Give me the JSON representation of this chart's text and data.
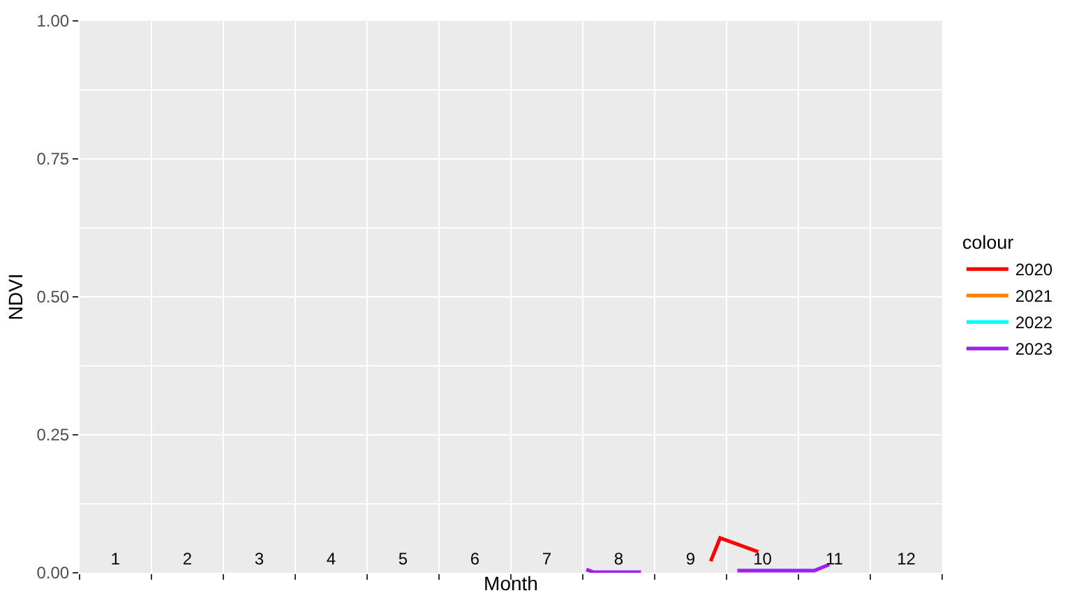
{
  "chart_data": {
    "type": "line",
    "xlabel": "Month",
    "ylabel": "NDVI",
    "legend_title": "colour",
    "legend": "right",
    "grid": true,
    "xlim": [
      0.5,
      12.5
    ],
    "xticks": [
      1,
      2,
      3,
      4,
      5,
      6,
      7,
      8,
      9,
      10,
      11,
      12,
      {
        "value": 0.5,
        "label": null
      },
      {
        "value": 1.5,
        "label": null
      },
      {
        "value": 2.5,
        "label": null
      },
      {
        "value": 3.5,
        "label": null
      },
      {
        "value": 4.5,
        "label": null
      },
      {
        "value": 5.5,
        "label": null
      },
      {
        "value": 6.5,
        "label": null
      },
      {
        "value": 7.5,
        "label": null
      },
      {
        "value": 8.5,
        "label": null
      },
      {
        "value": 9.5,
        "label": null
      },
      {
        "value": 10.5,
        "label": null
      },
      {
        "value": 11.5,
        "label": null
      },
      {
        "value": 12.5,
        "label": null
      }
    ],
    "ylim": [
      0,
      1
    ],
    "yticks": [
      {
        "value": 0,
        "label": "0.00"
      },
      {
        "value": 0.25,
        "label": "0.25"
      },
      {
        "value": 0.5,
        "label": "0.50"
      },
      {
        "value": 0.75,
        "label": "0.75"
      },
      {
        "value": 1,
        "label": "1.00"
      }
    ],
    "series": [
      {
        "name": "2020",
        "color": "#ff0000",
        "x": [
          9.28,
          9.41,
          9.94
        ],
        "values": [
          0.021,
          0.063,
          0.038
        ]
      },
      {
        "name": "2021",
        "color": "#ff7f00"
      },
      {
        "name": "2022",
        "color": "#00ffff"
      },
      {
        "name": "2023",
        "color": "#a020f0",
        "x": [
          7.55,
          7.65,
          8.31,
          9.0,
          9.65,
          10.72,
          10.93
        ],
        "values": [
          0.006,
          0.001,
          0.001,
          null,
          0.004,
          0.004,
          0.015
        ]
      }
    ]
  }
}
